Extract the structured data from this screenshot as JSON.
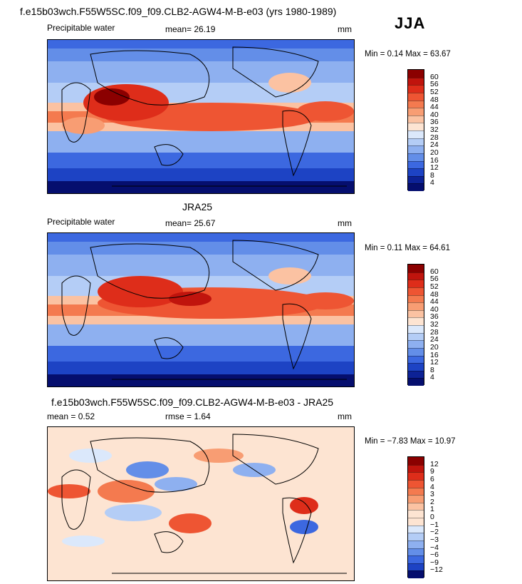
{
  "figure_title": "f.e15b03wch.F55W5SC.f09_f09.CLB2-AGW4-M-B-e03 (yrs 1980-1989)",
  "season": "JJA",
  "panels": [
    {
      "title": "",
      "variable": "Precipitable water",
      "stat1": "mean=   26.19",
      "stat2": "",
      "units": "mm",
      "minmax": "Min =    0.14  Max =   63.67",
      "colorbar": {
        "levels": [
          "60",
          "56",
          "52",
          "48",
          "44",
          "40",
          "36",
          "32",
          "28",
          "24",
          "20",
          "16",
          "12",
          "8",
          "4"
        ],
        "colors": [
          "#8b0000",
          "#c0140d",
          "#de2d1a",
          "#ee5533",
          "#f47a4f",
          "#f89d73",
          "#fbc2a2",
          "#fde4d2",
          "#dbe8fb",
          "#b4cdf6",
          "#8eb0f0",
          "#638ee8",
          "#3c68e0",
          "#1d43c4",
          "#0d2296",
          "#050e6e"
        ]
      }
    },
    {
      "title": "JRA25",
      "variable": "Precipitable water",
      "stat1": "mean=   25.67",
      "stat2": "",
      "units": "mm",
      "minmax": "Min =    0.11  Max =   64.61",
      "colorbar": {
        "levels": [
          "60",
          "56",
          "52",
          "48",
          "44",
          "40",
          "36",
          "32",
          "28",
          "24",
          "20",
          "16",
          "12",
          "8",
          "4"
        ],
        "colors": [
          "#8b0000",
          "#c0140d",
          "#de2d1a",
          "#ee5533",
          "#f47a4f",
          "#f89d73",
          "#fbc2a2",
          "#fde4d2",
          "#dbe8fb",
          "#b4cdf6",
          "#8eb0f0",
          "#638ee8",
          "#3c68e0",
          "#1d43c4",
          "#0d2296",
          "#050e6e"
        ]
      }
    },
    {
      "title": "f.e15b03wch.F55W5SC.f09_f09.CLB2-AGW4-M-B-e03 - JRA25",
      "variable": "",
      "stat1": "mean =    0.52",
      "stat2": "rmse =    1.64",
      "units": "mm",
      "minmax": "Min =  −7.83  Max =   10.97",
      "colorbar": {
        "levels": [
          "12",
          "9",
          "6",
          "4",
          "3",
          "2",
          "1",
          "0",
          "−1",
          "−2",
          "−3",
          "−4",
          "−6",
          "−9",
          "−12"
        ],
        "colors": [
          "#8b0000",
          "#c0140d",
          "#de2d1a",
          "#ee5533",
          "#f47a4f",
          "#f89d73",
          "#fbc2a2",
          "#fde4d2",
          "#fde4d2",
          "#dbe8fb",
          "#b4cdf6",
          "#8eb0f0",
          "#638ee8",
          "#3c68e0",
          "#1d43c4",
          "#050e6e"
        ]
      }
    }
  ]
}
